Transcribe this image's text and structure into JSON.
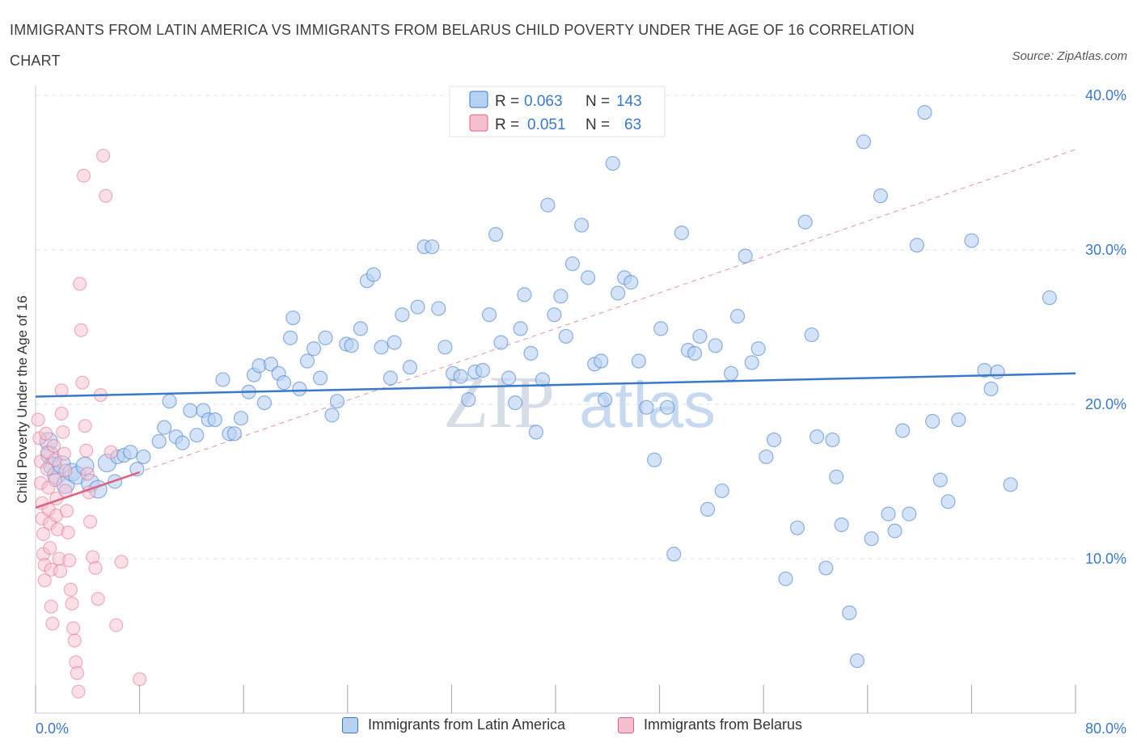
{
  "title": "IMMIGRANTS FROM LATIN AMERICA VS IMMIGRANTS FROM BELARUS CHILD POVERTY UNDER THE AGE OF 16 CORRELATION CHART",
  "source": "Source: ZipAtlas.com",
  "watermark": {
    "zip": "ZIP",
    "atlas": "atlas"
  },
  "colors": {
    "blue": "#3a78c9",
    "blue_fill": "#b7d1f2",
    "pink": "#e0607f",
    "pink_fill": "#f6bfd0",
    "grid": "#dde3ec",
    "axis_text": "#3a78c9"
  },
  "legend_top": [
    {
      "r_label": "R =",
      "r": "0.063",
      "n_label": "N =",
      "n": "143"
    },
    {
      "r_label": "R =",
      "r": "0.051",
      "n_label": "N =",
      "n": "63"
    }
  ],
  "chart_data": {
    "type": "scatter",
    "title": "IMMIGRANTS FROM LATIN AMERICA VS IMMIGRANTS FROM BELARUS CHILD POVERTY UNDER THE AGE OF 16 CORRELATION CHART",
    "xlabel": "",
    "ylabel": "Child Poverty Under the Age of 16",
    "xlim": [
      0,
      80
    ],
    "ylim": [
      0,
      40
    ],
    "x_tick_labels": [
      "0.0%",
      "80.0%"
    ],
    "y_tick_labels": [
      "10.0%",
      "20.0%",
      "30.0%",
      "40.0%"
    ],
    "y_ticks": [
      10,
      20,
      30,
      40
    ],
    "grid": true,
    "legend_position": "top-center",
    "series": [
      {
        "name": "Immigrants from Latin America",
        "color": "blue",
        "R": 0.063,
        "N": 143,
        "trend": [
          [
            0,
            20.5
          ],
          [
            80,
            22.0
          ]
        ],
        "points": [
          [
            1.0,
            17.6
          ],
          [
            1.1,
            16.7
          ],
          [
            1.3,
            16.0
          ],
          [
            1.6,
            15.4
          ],
          [
            2.0,
            16.1
          ],
          [
            2.3,
            14.8
          ],
          [
            2.8,
            15.6
          ],
          [
            3.2,
            15.4
          ],
          [
            3.8,
            16.0
          ],
          [
            4.2,
            14.9
          ],
          [
            4.8,
            14.5
          ],
          [
            5.5,
            16.2
          ],
          [
            6.1,
            15.0
          ],
          [
            6.3,
            16.6
          ],
          [
            6.8,
            16.7
          ],
          [
            7.3,
            16.9
          ],
          [
            7.8,
            15.8
          ],
          [
            8.3,
            16.6
          ],
          [
            9.5,
            17.6
          ],
          [
            9.9,
            18.5
          ],
          [
            10.3,
            20.2
          ],
          [
            10.8,
            17.9
          ],
          [
            11.3,
            17.5
          ],
          [
            11.9,
            19.6
          ],
          [
            12.4,
            18.0
          ],
          [
            12.9,
            19.6
          ],
          [
            13.3,
            19.0
          ],
          [
            13.8,
            19.0
          ],
          [
            14.4,
            21.6
          ],
          [
            14.9,
            18.1
          ],
          [
            15.3,
            18.1
          ],
          [
            15.8,
            19.1
          ],
          [
            16.4,
            20.8
          ],
          [
            16.8,
            21.9
          ],
          [
            17.2,
            22.5
          ],
          [
            17.6,
            20.1
          ],
          [
            18.1,
            22.6
          ],
          [
            18.7,
            22.0
          ],
          [
            19.1,
            21.4
          ],
          [
            19.6,
            24.3
          ],
          [
            19.8,
            25.6
          ],
          [
            20.3,
            21.0
          ],
          [
            20.9,
            22.8
          ],
          [
            21.4,
            23.6
          ],
          [
            21.9,
            21.7
          ],
          [
            22.3,
            24.3
          ],
          [
            22.8,
            19.3
          ],
          [
            23.2,
            20.2
          ],
          [
            23.9,
            23.9
          ],
          [
            24.3,
            23.8
          ],
          [
            25.0,
            24.9
          ],
          [
            25.5,
            28.0
          ],
          [
            26.0,
            28.4
          ],
          [
            26.6,
            23.7
          ],
          [
            27.3,
            21.7
          ],
          [
            27.6,
            24.0
          ],
          [
            28.2,
            25.8
          ],
          [
            28.8,
            22.4
          ],
          [
            29.4,
            26.3
          ],
          [
            29.9,
            30.2
          ],
          [
            30.5,
            30.2
          ],
          [
            31.0,
            26.2
          ],
          [
            31.5,
            23.7
          ],
          [
            32.1,
            22.0
          ],
          [
            32.7,
            21.8
          ],
          [
            33.3,
            20.3
          ],
          [
            33.8,
            22.1
          ],
          [
            34.4,
            22.2
          ],
          [
            34.9,
            25.8
          ],
          [
            35.4,
            31.0
          ],
          [
            35.8,
            24.0
          ],
          [
            36.4,
            21.7
          ],
          [
            36.9,
            20.1
          ],
          [
            37.3,
            24.9
          ],
          [
            37.6,
            27.1
          ],
          [
            38.1,
            23.3
          ],
          [
            38.5,
            18.2
          ],
          [
            39.0,
            21.6
          ],
          [
            39.4,
            32.9
          ],
          [
            39.9,
            25.8
          ],
          [
            40.4,
            27.0
          ],
          [
            40.8,
            24.4
          ],
          [
            41.3,
            29.1
          ],
          [
            42.0,
            31.6
          ],
          [
            42.5,
            28.2
          ],
          [
            43.0,
            22.6
          ],
          [
            43.5,
            22.8
          ],
          [
            43.8,
            20.3
          ],
          [
            44.4,
            35.6
          ],
          [
            44.8,
            27.2
          ],
          [
            45.3,
            28.2
          ],
          [
            45.8,
            27.9
          ],
          [
            46.4,
            22.8
          ],
          [
            47.0,
            19.8
          ],
          [
            47.6,
            16.4
          ],
          [
            48.1,
            24.9
          ],
          [
            48.6,
            19.8
          ],
          [
            49.1,
            10.3
          ],
          [
            49.7,
            31.1
          ],
          [
            50.2,
            23.5
          ],
          [
            50.7,
            23.3
          ],
          [
            51.1,
            24.4
          ],
          [
            51.7,
            13.2
          ],
          [
            52.3,
            23.8
          ],
          [
            52.8,
            14.4
          ],
          [
            53.5,
            22.0
          ],
          [
            54.0,
            25.7
          ],
          [
            54.6,
            29.6
          ],
          [
            55.1,
            22.7
          ],
          [
            55.6,
            23.6
          ],
          [
            56.2,
            16.6
          ],
          [
            56.8,
            17.7
          ],
          [
            57.7,
            8.7
          ],
          [
            58.6,
            12.0
          ],
          [
            59.2,
            31.8
          ],
          [
            59.7,
            24.5
          ],
          [
            60.1,
            17.9
          ],
          [
            60.8,
            9.4
          ],
          [
            61.3,
            17.7
          ],
          [
            61.6,
            15.3
          ],
          [
            62.0,
            12.2
          ],
          [
            62.6,
            6.5
          ],
          [
            63.2,
            3.4
          ],
          [
            63.7,
            37.0
          ],
          [
            64.3,
            11.3
          ],
          [
            65.0,
            33.5
          ],
          [
            65.6,
            12.9
          ],
          [
            66.1,
            11.8
          ],
          [
            66.7,
            18.3
          ],
          [
            67.2,
            12.9
          ],
          [
            67.8,
            30.3
          ],
          [
            68.4,
            38.9
          ],
          [
            69.0,
            18.9
          ],
          [
            69.6,
            15.1
          ],
          [
            70.2,
            13.7
          ],
          [
            71.0,
            19.0
          ],
          [
            72.0,
            30.6
          ],
          [
            73.0,
            22.2
          ],
          [
            73.5,
            21.0
          ],
          [
            74.0,
            22.1
          ],
          [
            75.0,
            14.8
          ],
          [
            78.0,
            26.9
          ]
        ]
      },
      {
        "name": "Immigrants from Belarus",
        "color": "pink",
        "R": 0.051,
        "N": 63,
        "trend": [
          [
            0,
            13.3
          ],
          [
            8,
            15.6
          ]
        ],
        "trend_extended": [
          [
            0,
            13.3
          ],
          [
            80,
            36.5
          ]
        ],
        "points": [
          [
            0.2,
            19.0
          ],
          [
            0.3,
            17.8
          ],
          [
            0.4,
            16.3
          ],
          [
            0.4,
            14.9
          ],
          [
            0.5,
            13.6
          ],
          [
            0.5,
            12.6
          ],
          [
            0.6,
            11.6
          ],
          [
            0.6,
            10.3
          ],
          [
            0.7,
            9.6
          ],
          [
            0.7,
            8.6
          ],
          [
            0.8,
            18.1
          ],
          [
            0.9,
            16.9
          ],
          [
            0.9,
            15.8
          ],
          [
            1.0,
            14.6
          ],
          [
            1.0,
            13.2
          ],
          [
            1.1,
            12.3
          ],
          [
            1.1,
            10.7
          ],
          [
            1.2,
            9.3
          ],
          [
            1.2,
            6.9
          ],
          [
            1.3,
            5.8
          ],
          [
            1.4,
            17.3
          ],
          [
            1.5,
            16.4
          ],
          [
            1.5,
            15.1
          ],
          [
            1.6,
            13.9
          ],
          [
            1.6,
            12.8
          ],
          [
            1.7,
            11.9
          ],
          [
            1.8,
            10.0
          ],
          [
            1.9,
            9.2
          ],
          [
            2.0,
            20.9
          ],
          [
            2.0,
            19.4
          ],
          [
            2.1,
            18.2
          ],
          [
            2.2,
            16.8
          ],
          [
            2.3,
            15.7
          ],
          [
            2.3,
            14.4
          ],
          [
            2.4,
            13.1
          ],
          [
            2.5,
            11.7
          ],
          [
            2.6,
            9.9
          ],
          [
            2.7,
            8.0
          ],
          [
            2.8,
            7.1
          ],
          [
            2.9,
            5.5
          ],
          [
            3.0,
            4.7
          ],
          [
            3.1,
            3.3
          ],
          [
            3.2,
            2.6
          ],
          [
            3.3,
            1.4
          ],
          [
            3.4,
            27.8
          ],
          [
            3.5,
            24.8
          ],
          [
            3.6,
            21.4
          ],
          [
            3.7,
            34.8
          ],
          [
            3.8,
            18.6
          ],
          [
            3.9,
            17.0
          ],
          [
            4.0,
            15.5
          ],
          [
            4.1,
            14.3
          ],
          [
            4.2,
            12.4
          ],
          [
            4.4,
            10.1
          ],
          [
            4.6,
            9.4
          ],
          [
            4.8,
            7.4
          ],
          [
            5.0,
            20.6
          ],
          [
            5.2,
            36.1
          ],
          [
            5.4,
            33.5
          ],
          [
            5.8,
            16.9
          ],
          [
            6.2,
            5.7
          ],
          [
            6.6,
            9.8
          ],
          [
            8.0,
            2.2
          ]
        ]
      }
    ]
  }
}
